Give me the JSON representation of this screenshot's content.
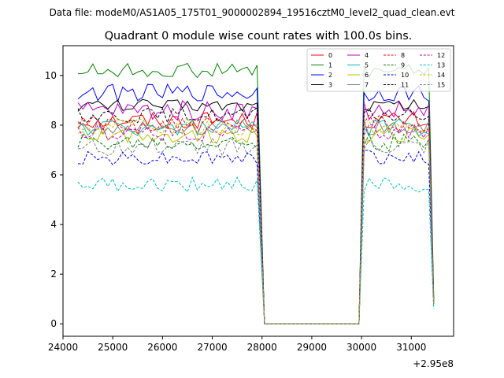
{
  "chart_data": {
    "type": "line",
    "suptitle": "Data file: modeM0/AS1A05_175T01_9000002894_19516cztM0_level2_quad_clean.evt",
    "title": "Quadrant 0 module wise count rates with 100.0s bins.",
    "xlabel": "",
    "ylabel": "",
    "x_offset_label": "+2.95e8",
    "xlim": [
      24000,
      31850
    ],
    "ylim": [
      -0.5,
      11.2
    ],
    "xticks": [
      24000,
      25000,
      26000,
      27000,
      28000,
      29000,
      30000,
      31000
    ],
    "yticks": [
      0,
      2,
      4,
      6,
      8,
      10
    ],
    "legend_location": "upper-right",
    "segments": [
      {
        "start": 24300,
        "end": 27900
      },
      {
        "start": 30050,
        "end": 31350
      }
    ],
    "gap": {
      "start": 28050,
      "end": 29950,
      "value": 0
    },
    "tail_x": 31450,
    "series": [
      {
        "name": "0",
        "color": "#ff0000",
        "dash": "solid",
        "mean": 8.2,
        "amp": 0.35,
        "tail": 1.0
      },
      {
        "name": "1",
        "color": "#008000",
        "dash": "solid",
        "mean": 10.2,
        "amp": 0.3,
        "tail": 1.2
      },
      {
        "name": "2",
        "color": "#0000ff",
        "dash": "solid",
        "mean": 9.3,
        "amp": 0.35,
        "tail": 1.1
      },
      {
        "name": "3",
        "color": "#000000",
        "dash": "solid",
        "mean": 8.8,
        "amp": 0.25,
        "tail": 1.0
      },
      {
        "name": "4",
        "color": "#c000c0",
        "dash": "solid",
        "mean": 8.6,
        "amp": 0.4,
        "tail": 0.9
      },
      {
        "name": "5",
        "color": "#00bfbf",
        "dash": "solid",
        "mean": 7.9,
        "amp": 0.35,
        "tail": 0.9
      },
      {
        "name": "6",
        "color": "#bfbf00",
        "dash": "solid",
        "mean": 7.6,
        "amp": 0.3,
        "tail": 0.8
      },
      {
        "name": "7",
        "color": "#808080",
        "dash": "solid",
        "mean": 7.9,
        "amp": 0.3,
        "tail": 0.9
      },
      {
        "name": "8",
        "color": "#ff0000",
        "dash": "dashed",
        "mean": 8.0,
        "amp": 0.4,
        "tail": 0.9
      },
      {
        "name": "9",
        "color": "#008000",
        "dash": "dashed",
        "mean": 7.3,
        "amp": 0.35,
        "tail": 0.8
      },
      {
        "name": "10",
        "color": "#0000ff",
        "dash": "dashed",
        "mean": 6.7,
        "amp": 0.3,
        "tail": 0.8
      },
      {
        "name": "11",
        "color": "#000000",
        "dash": "dashed",
        "mean": 8.4,
        "amp": 0.3,
        "tail": 0.9
      },
      {
        "name": "12",
        "color": "#c000c0",
        "dash": "dashed",
        "mean": 7.7,
        "amp": 0.35,
        "tail": 0.8
      },
      {
        "name": "13",
        "color": "#00bfbf",
        "dash": "dashed",
        "mean": 5.6,
        "amp": 0.3,
        "tail": 0.6
      },
      {
        "name": "14",
        "color": "#bfbf00",
        "dash": "dashed",
        "mean": 7.9,
        "amp": 0.35,
        "tail": 0.8
      },
      {
        "name": "15",
        "color": "#808080",
        "dash": "dashed",
        "mean": 7.1,
        "amp": 0.35,
        "tail": 0.8
      }
    ]
  }
}
